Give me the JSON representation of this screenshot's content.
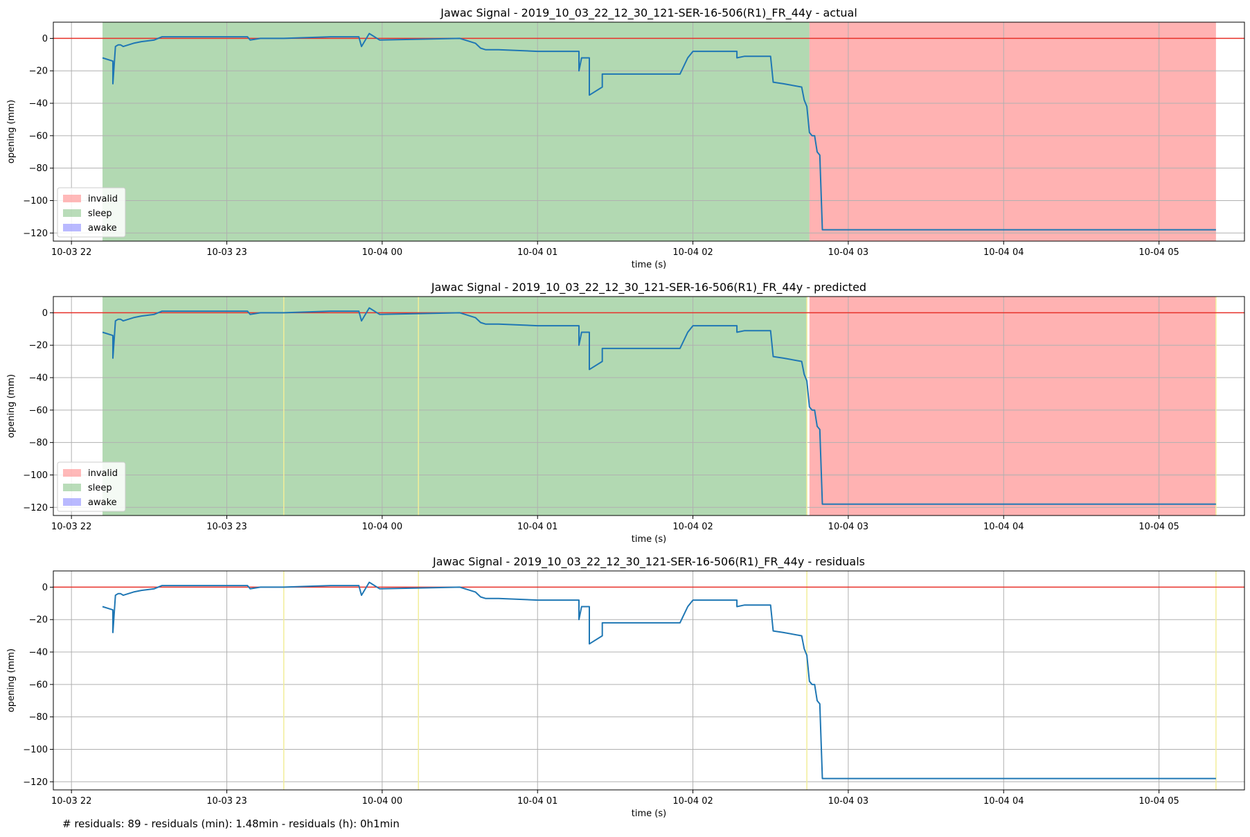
{
  "figure": {
    "footer_note": "# residuals: 89 - residuals (min): 1.48min - residuals (h): 0h1min"
  },
  "colors": {
    "invalid": "#ff7f7f",
    "sleep": "#7fbf7f",
    "awake": "#7f7fff",
    "signal": "#1f77b4",
    "zero_line": "#e8312a",
    "residual_marker": "#f2ee9a",
    "grid": "#b0b0b0"
  },
  "chart_data": [
    {
      "type": "line",
      "title": "Jawac Signal - 2019_10_03_22_12_30_121-SER-16-506(R1)_FR_44y - actual",
      "xlabel": "time (s)",
      "ylabel": "opening (mm)",
      "xlim": [
        "2019-10-03 21:53",
        "2019-10-04 05:33"
      ],
      "ylim": [
        -125,
        10
      ],
      "x_ticks": [
        "10-03 22",
        "10-03 23",
        "10-04 00",
        "10-04 01",
        "10-04 02",
        "10-04 03",
        "10-04 04",
        "10-04 05"
      ],
      "x_tick_times": [
        "2019-10-03 22:00",
        "2019-10-03 23:00",
        "2019-10-04 00:00",
        "2019-10-04 01:00",
        "2019-10-04 02:00",
        "2019-10-04 03:00",
        "2019-10-04 04:00",
        "2019-10-04 05:00"
      ],
      "y_ticks": [
        0,
        -20,
        -40,
        -60,
        -80,
        -100,
        -120
      ],
      "grid": true,
      "reference_line_y": 0,
      "legend": {
        "placement": "lower-left",
        "entries": [
          "invalid",
          "sleep",
          "awake"
        ]
      },
      "regions": [
        {
          "label": "sleep",
          "start": "2019-10-03 22:12",
          "end": "2019-10-04 02:45"
        },
        {
          "label": "invalid",
          "start": "2019-10-04 02:45",
          "end": "2019-10-04 05:22"
        }
      ],
      "series": [
        {
          "x": [
            "2019-10-03 22:12",
            "2019-10-03 22:16",
            "2019-10-03 22:16",
            "2019-10-03 22:17",
            "2019-10-03 22:18",
            "2019-10-03 22:19",
            "2019-10-03 22:20",
            "2019-10-03 22:24",
            "2019-10-03 22:27",
            "2019-10-03 22:32",
            "2019-10-03 22:35",
            "2019-10-03 23:08",
            "2019-10-03 23:09",
            "2019-10-03 23:13",
            "2019-10-03 23:22",
            "2019-10-03 23:40",
            "2019-10-03 23:51",
            "2019-10-03 23:52",
            "2019-10-03 23:55",
            "2019-10-03 23:59",
            "2019-10-04 00:30",
            "2019-10-04 00:36",
            "2019-10-04 00:38",
            "2019-10-04 00:40",
            "2019-10-04 00:45",
            "2019-10-04 01:00",
            "2019-10-04 01:16",
            "2019-10-04 01:16",
            "2019-10-04 01:17",
            "2019-10-04 01:20",
            "2019-10-04 01:20",
            "2019-10-04 01:25",
            "2019-10-04 01:25",
            "2019-10-04 01:30",
            "2019-10-04 01:30",
            "2019-10-04 01:55",
            "2019-10-04 01:58",
            "2019-10-04 02:00",
            "2019-10-04 02:01",
            "2019-10-04 02:17",
            "2019-10-04 02:17",
            "2019-10-04 02:20",
            "2019-10-04 02:30",
            "2019-10-04 02:31",
            "2019-10-04 02:35",
            "2019-10-04 02:42",
            "2019-10-04 02:43",
            "2019-10-04 02:44",
            "2019-10-04 02:45",
            "2019-10-04 02:46",
            "2019-10-04 02:47",
            "2019-10-04 02:48",
            "2019-10-04 02:49",
            "2019-10-04 02:50",
            "2019-10-04 03:30",
            "2019-10-04 04:30",
            "2019-10-04 05:22"
          ],
          "y": [
            -12,
            -14,
            -28,
            -5,
            -4,
            -4,
            -5,
            -3,
            -2,
            -1,
            1,
            1,
            -1,
            0,
            0,
            1,
            1,
            -5,
            3,
            -1,
            0,
            -3,
            -6,
            -7,
            -7,
            -8,
            -8,
            -20,
            -12,
            -12,
            -35,
            -30,
            -22,
            -22,
            -22,
            -22,
            -12,
            -8,
            -8,
            -8,
            -12,
            -11,
            -11,
            -27,
            -28,
            -30,
            -38,
            -42,
            -58,
            -60,
            -60,
            -70,
            -72,
            -118,
            -118,
            -118,
            -118
          ]
        }
      ]
    },
    {
      "type": "line",
      "title": "Jawac Signal - 2019_10_03_22_12_30_121-SER-16-506(R1)_FR_44y - predicted",
      "xlabel": "time (s)",
      "ylabel": "opening (mm)",
      "xlim": [
        "2019-10-03 21:53",
        "2019-10-04 05:33"
      ],
      "ylim": [
        -125,
        10
      ],
      "x_ticks": [
        "10-03 22",
        "10-03 23",
        "10-04 00",
        "10-04 01",
        "10-04 02",
        "10-04 03",
        "10-04 04",
        "10-04 05"
      ],
      "x_tick_times": [
        "2019-10-03 22:00",
        "2019-10-03 23:00",
        "2019-10-04 00:00",
        "2019-10-04 01:00",
        "2019-10-04 02:00",
        "2019-10-04 03:00",
        "2019-10-04 04:00",
        "2019-10-04 05:00"
      ],
      "y_ticks": [
        0,
        -20,
        -40,
        -60,
        -80,
        -100,
        -120
      ],
      "grid": true,
      "reference_line_y": 0,
      "legend": {
        "placement": "lower-left",
        "entries": [
          "invalid",
          "sleep",
          "awake"
        ]
      },
      "regions": [
        {
          "label": "sleep",
          "start": "2019-10-03 22:12",
          "end": "2019-10-04 02:44"
        },
        {
          "label": "invalid",
          "start": "2019-10-04 02:45",
          "end": "2019-10-04 05:22"
        }
      ],
      "residual_markers": [
        "2019-10-03 23:22",
        "2019-10-04 00:14",
        "2019-10-04 02:44",
        "2019-10-04 05:22"
      ],
      "series": [
        {
          "x": [
            "2019-10-03 22:12",
            "2019-10-03 22:16",
            "2019-10-03 22:16",
            "2019-10-03 22:17",
            "2019-10-03 22:18",
            "2019-10-03 22:19",
            "2019-10-03 22:20",
            "2019-10-03 22:24",
            "2019-10-03 22:27",
            "2019-10-03 22:32",
            "2019-10-03 22:35",
            "2019-10-03 23:08",
            "2019-10-03 23:09",
            "2019-10-03 23:13",
            "2019-10-03 23:22",
            "2019-10-03 23:40",
            "2019-10-03 23:51",
            "2019-10-03 23:52",
            "2019-10-03 23:55",
            "2019-10-03 23:59",
            "2019-10-04 00:30",
            "2019-10-04 00:36",
            "2019-10-04 00:38",
            "2019-10-04 00:40",
            "2019-10-04 00:45",
            "2019-10-04 01:00",
            "2019-10-04 01:16",
            "2019-10-04 01:16",
            "2019-10-04 01:17",
            "2019-10-04 01:20",
            "2019-10-04 01:20",
            "2019-10-04 01:25",
            "2019-10-04 01:25",
            "2019-10-04 01:30",
            "2019-10-04 01:30",
            "2019-10-04 01:55",
            "2019-10-04 01:58",
            "2019-10-04 02:00",
            "2019-10-04 02:01",
            "2019-10-04 02:17",
            "2019-10-04 02:17",
            "2019-10-04 02:20",
            "2019-10-04 02:30",
            "2019-10-04 02:31",
            "2019-10-04 02:35",
            "2019-10-04 02:42",
            "2019-10-04 02:43",
            "2019-10-04 02:44",
            "2019-10-04 02:45",
            "2019-10-04 02:46",
            "2019-10-04 02:47",
            "2019-10-04 02:48",
            "2019-10-04 02:49",
            "2019-10-04 02:50",
            "2019-10-04 03:30",
            "2019-10-04 04:30",
            "2019-10-04 05:22"
          ],
          "y": [
            -12,
            -14,
            -28,
            -5,
            -4,
            -4,
            -5,
            -3,
            -2,
            -1,
            1,
            1,
            -1,
            0,
            0,
            1,
            1,
            -5,
            3,
            -1,
            0,
            -3,
            -6,
            -7,
            -7,
            -8,
            -8,
            -20,
            -12,
            -12,
            -35,
            -30,
            -22,
            -22,
            -22,
            -22,
            -12,
            -8,
            -8,
            -8,
            -12,
            -11,
            -11,
            -27,
            -28,
            -30,
            -38,
            -42,
            -58,
            -60,
            -60,
            -70,
            -72,
            -118,
            -118,
            -118,
            -118
          ]
        }
      ]
    },
    {
      "type": "line",
      "title": "Jawac Signal - 2019_10_03_22_12_30_121-SER-16-506(R1)_FR_44y - residuals",
      "xlabel": "time (s)",
      "ylabel": "opening (mm)",
      "xlim": [
        "2019-10-03 21:53",
        "2019-10-04 05:33"
      ],
      "ylim": [
        -125,
        10
      ],
      "x_ticks": [
        "10-03 22",
        "10-03 23",
        "10-04 00",
        "10-04 01",
        "10-04 02",
        "10-04 03",
        "10-04 04",
        "10-04 05"
      ],
      "x_tick_times": [
        "2019-10-03 22:00",
        "2019-10-03 23:00",
        "2019-10-04 00:00",
        "2019-10-04 01:00",
        "2019-10-04 02:00",
        "2019-10-04 03:00",
        "2019-10-04 04:00",
        "2019-10-04 05:00"
      ],
      "y_ticks": [
        0,
        -20,
        -40,
        -60,
        -80,
        -100,
        -120
      ],
      "grid": true,
      "reference_line_y": 0,
      "regions": [],
      "residual_markers": [
        "2019-10-03 23:22",
        "2019-10-04 00:14",
        "2019-10-04 02:44",
        "2019-10-04 05:22"
      ],
      "series": [
        {
          "x": [
            "2019-10-03 22:12",
            "2019-10-03 22:16",
            "2019-10-03 22:16",
            "2019-10-03 22:17",
            "2019-10-03 22:18",
            "2019-10-03 22:19",
            "2019-10-03 22:20",
            "2019-10-03 22:24",
            "2019-10-03 22:27",
            "2019-10-03 22:32",
            "2019-10-03 22:35",
            "2019-10-03 23:08",
            "2019-10-03 23:09",
            "2019-10-03 23:13",
            "2019-10-03 23:22",
            "2019-10-03 23:40",
            "2019-10-03 23:51",
            "2019-10-03 23:52",
            "2019-10-03 23:55",
            "2019-10-03 23:59",
            "2019-10-04 00:30",
            "2019-10-04 00:36",
            "2019-10-04 00:38",
            "2019-10-04 00:40",
            "2019-10-04 00:45",
            "2019-10-04 01:00",
            "2019-10-04 01:16",
            "2019-10-04 01:16",
            "2019-10-04 01:17",
            "2019-10-04 01:20",
            "2019-10-04 01:20",
            "2019-10-04 01:25",
            "2019-10-04 01:25",
            "2019-10-04 01:30",
            "2019-10-04 01:30",
            "2019-10-04 01:55",
            "2019-10-04 01:58",
            "2019-10-04 02:00",
            "2019-10-04 02:01",
            "2019-10-04 02:17",
            "2019-10-04 02:17",
            "2019-10-04 02:20",
            "2019-10-04 02:30",
            "2019-10-04 02:31",
            "2019-10-04 02:35",
            "2019-10-04 02:42",
            "2019-10-04 02:43",
            "2019-10-04 02:44",
            "2019-10-04 02:45",
            "2019-10-04 02:46",
            "2019-10-04 02:47",
            "2019-10-04 02:48",
            "2019-10-04 02:49",
            "2019-10-04 02:50",
            "2019-10-04 03:30",
            "2019-10-04 04:30",
            "2019-10-04 05:22"
          ],
          "y": [
            -12,
            -14,
            -28,
            -5,
            -4,
            -4,
            -5,
            -3,
            -2,
            -1,
            1,
            1,
            -1,
            0,
            0,
            1,
            1,
            -5,
            3,
            -1,
            0,
            -3,
            -6,
            -7,
            -7,
            -8,
            -8,
            -20,
            -12,
            -12,
            -35,
            -30,
            -22,
            -22,
            -22,
            -22,
            -12,
            -8,
            -8,
            -8,
            -12,
            -11,
            -11,
            -27,
            -28,
            -30,
            -38,
            -42,
            -58,
            -60,
            -60,
            -70,
            -72,
            -118,
            -118,
            -118,
            -118
          ]
        }
      ]
    }
  ]
}
